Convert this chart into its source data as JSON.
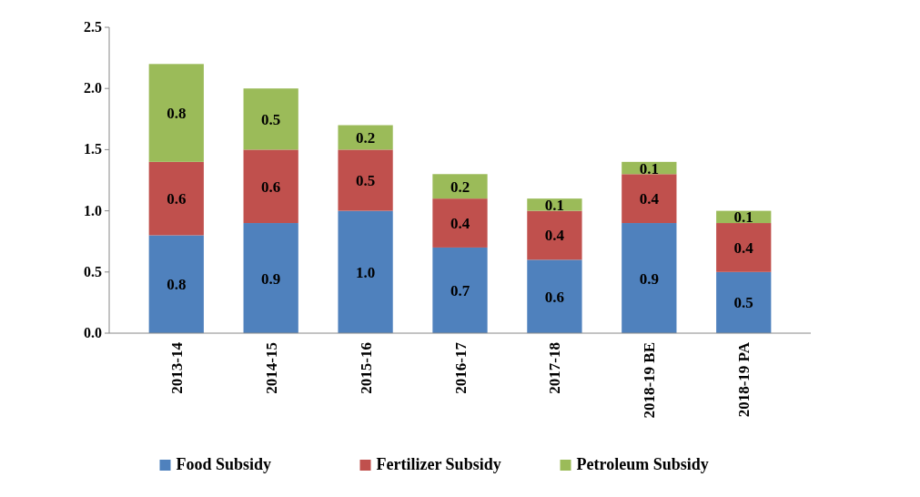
{
  "chart_data": {
    "type": "bar",
    "stacked": true,
    "categories": [
      "2013-14",
      "2014-15",
      "2015-16",
      "2016-17",
      "2017-18",
      "2018-19 BE",
      "2018-19 PA"
    ],
    "series": [
      {
        "name": "Food Subsidy",
        "color": "#4f81bd",
        "values": [
          0.8,
          0.9,
          1.0,
          0.7,
          0.6,
          0.9,
          0.5
        ],
        "value_labels": [
          "0.8",
          "0.9",
          "1.0",
          "0.7",
          "0.6",
          "0.9",
          "0.5"
        ]
      },
      {
        "name": "Fertilizer Subsidy",
        "color": "#c0504d",
        "values": [
          0.6,
          0.6,
          0.5,
          0.4,
          0.4,
          0.4,
          0.4
        ],
        "value_labels": [
          "0.6",
          "0.6",
          "0.5",
          "0.4",
          "0.4",
          "0.4",
          "0.4"
        ]
      },
      {
        "name": "Petroleum Subsidy",
        "color": "#9bbb59",
        "values": [
          0.8,
          0.5,
          0.2,
          0.2,
          0.1,
          0.1,
          0.1
        ],
        "value_labels": [
          "0.8",
          "0.5",
          "0.2",
          "0.2",
          "0.1",
          "0.1",
          "0.1"
        ]
      }
    ],
    "ylim": [
      0,
      2.5
    ],
    "yticks": [
      {
        "value": 0,
        "label": "0.0"
      },
      {
        "value": 0.5,
        "label": "0.5"
      },
      {
        "value": 1,
        "label": "1.0"
      },
      {
        "value": 1.5,
        "label": "1.5"
      },
      {
        "value": 2,
        "label": "2.0"
      },
      {
        "value": 2.5,
        "label": "2.5"
      }
    ],
    "legend": "bottom",
    "grid": false
  }
}
